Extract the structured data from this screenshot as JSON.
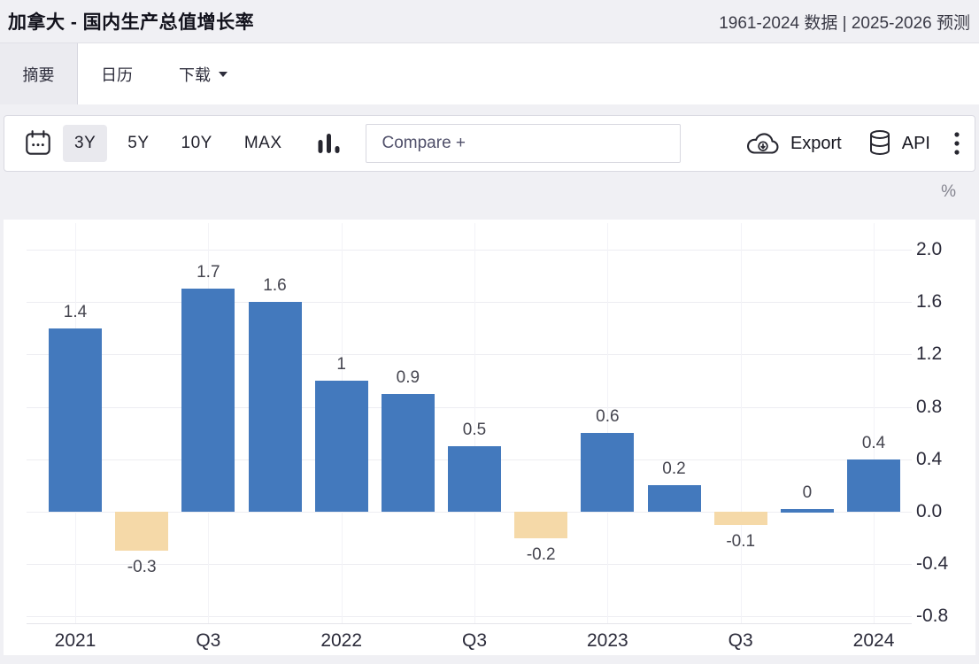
{
  "header": {
    "title": "加拿大 - 国内生产总值增长率",
    "range_info": "1961-2024 数据 | 2025-2026 预测"
  },
  "tabs": [
    {
      "label": "摘要",
      "active": true
    },
    {
      "label": "日历",
      "active": false
    },
    {
      "label": "下载",
      "active": false,
      "has_dropdown": true
    }
  ],
  "toolbar": {
    "range_buttons": [
      {
        "label": "3Y",
        "active": true
      },
      {
        "label": "5Y",
        "active": false
      },
      {
        "label": "10Y",
        "active": false
      },
      {
        "label": "MAX",
        "active": false
      }
    ],
    "compare_placeholder": "Compare +",
    "export_label": "Export",
    "api_label": "API",
    "icons": [
      "calendar-icon",
      "bar-chart-icon",
      "cloud-download-icon",
      "database-icon",
      "kebab-menu-icon"
    ]
  },
  "chart_data": {
    "type": "bar",
    "title": "加拿大 - 国内生产总值增长率",
    "unit_label": "%",
    "categories": [
      "2021",
      "Q3",
      "2022",
      "Q3",
      "2023",
      "Q3",
      "2024"
    ],
    "values": [
      1.4,
      -0.3,
      1.7,
      1.6,
      1,
      0.9,
      0.5,
      -0.2,
      0.6,
      0.2,
      -0.1,
      0,
      0.4
    ],
    "value_labels": [
      "1.4",
      "-0.3",
      "1.7",
      "1.6",
      "1",
      "0.9",
      "0.5",
      "-0.2",
      "0.6",
      "0.2",
      "-0.1",
      "0",
      "0.4"
    ],
    "yticks": [
      "2.0",
      "1.6",
      "1.2",
      "0.8",
      "0.4",
      "0.0",
      "-0.4",
      "-0.8"
    ],
    "ylim": [
      -0.8,
      2.0
    ],
    "grid": true,
    "legend": "none",
    "positive_color": "#4379BD",
    "negative_color": "#F5D9A8"
  },
  "colors": {
    "page_bg": "#F0F0F4",
    "card_bg": "#FFFFFF",
    "border": "#D9D9E1",
    "text_dark": "#23232E",
    "bar_positive": "#4379BD",
    "bar_negative": "#F5D9A8"
  }
}
